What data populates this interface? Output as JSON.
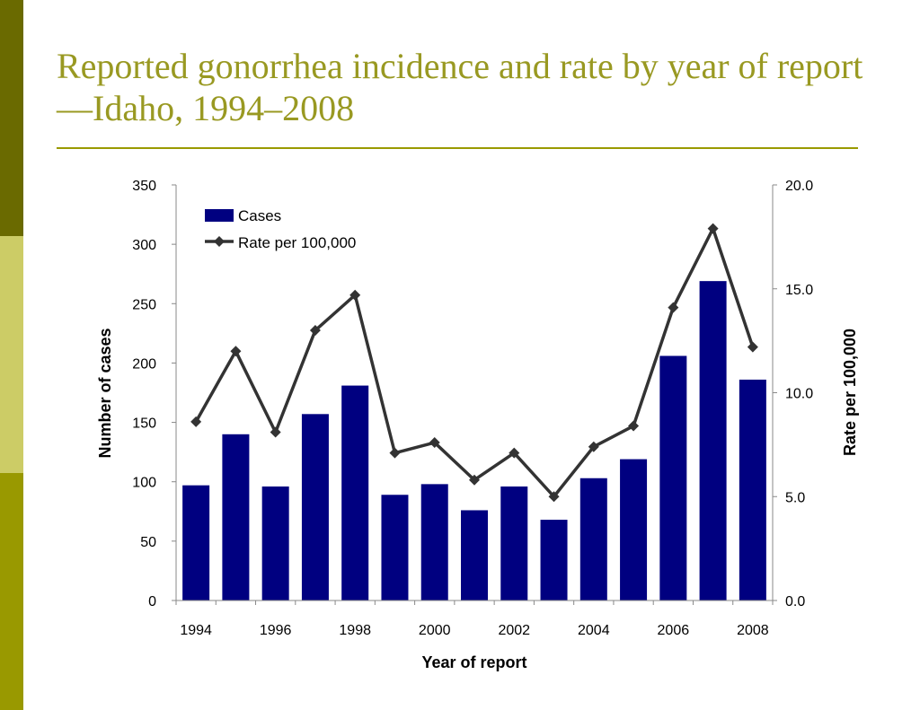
{
  "slide": {
    "title": "Reported gonorrhea incidence and rate by year of report—Idaho, 1994–2008"
  },
  "colors": {
    "sidebar_top": "#6a6a00",
    "sidebar_mid": "#cccc66",
    "sidebar_bottom": "#999900",
    "title": "#999922",
    "rule": "#999900",
    "bars": "#000080",
    "line": "#333333"
  },
  "chart_data": {
    "type": "bar",
    "categories": [
      1994,
      1995,
      1996,
      1997,
      1998,
      1999,
      2000,
      2001,
      2002,
      2003,
      2004,
      2005,
      2006,
      2007,
      2008
    ],
    "x_tick_labels": [
      "1994",
      "1996",
      "1998",
      "2000",
      "2002",
      "2004",
      "2006",
      "2008"
    ],
    "series": [
      {
        "name": "Cases",
        "type": "bar",
        "axis": "left",
        "values": [
          97,
          140,
          96,
          157,
          181,
          89,
          98,
          76,
          96,
          68,
          103,
          119,
          206,
          269,
          186
        ]
      },
      {
        "name": "Rate per 100,000",
        "type": "line",
        "axis": "right",
        "marker": "diamond",
        "values": [
          8.6,
          12.0,
          8.1,
          13.0,
          14.7,
          7.1,
          7.6,
          5.8,
          7.1,
          5.0,
          7.4,
          8.4,
          14.1,
          17.9,
          12.2
        ]
      }
    ],
    "xlabel": "Year of report",
    "ylabel": "Number of cases",
    "y2label": "Rate per 100,000",
    "ylim": [
      0,
      350
    ],
    "y_ticks": [
      "0",
      "50",
      "100",
      "150",
      "200",
      "250",
      "300",
      "350"
    ],
    "y2lim": [
      0,
      20
    ],
    "y2_ticks": [
      "0.0",
      "5.0",
      "10.0",
      "15.0",
      "20.0"
    ],
    "grid": false,
    "legend_position": "top-left"
  }
}
